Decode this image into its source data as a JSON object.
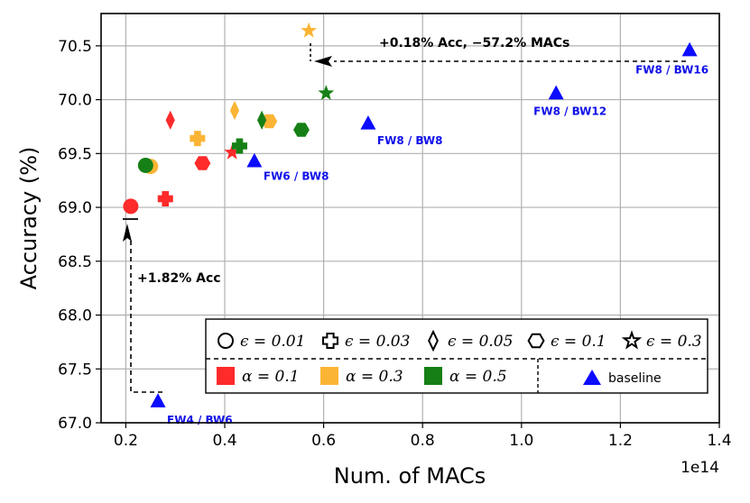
{
  "chart_data": {
    "type": "scatter",
    "xlabel": "Num. of MACs",
    "ylabel": "Accuracy (%)",
    "x_offset_label": "1e14",
    "xlim": [
      0.15,
      1.4
    ],
    "ylim": [
      67.0,
      70.8
    ],
    "grid": true,
    "x_ticks": [
      {
        "v": 0.2,
        "label": "0.2"
      },
      {
        "v": 0.4,
        "label": "0.4"
      },
      {
        "v": 0.6,
        "label": "0.6"
      },
      {
        "v": 0.8,
        "label": "0.8"
      },
      {
        "v": 1.0,
        "label": "1.0"
      },
      {
        "v": 1.2,
        "label": "1.2"
      },
      {
        "v": 1.4,
        "label": "1.4"
      }
    ],
    "y_ticks": [
      {
        "v": 67.0,
        "label": "67.0"
      },
      {
        "v": 67.5,
        "label": "67.5"
      },
      {
        "v": 68.0,
        "label": "68.0"
      },
      {
        "v": 68.5,
        "label": "68.5"
      },
      {
        "v": 69.0,
        "label": "69.0"
      },
      {
        "v": 69.5,
        "label": "69.5"
      },
      {
        "v": 70.0,
        "label": "70.0"
      },
      {
        "v": 70.5,
        "label": "70.5"
      }
    ],
    "colors": {
      "alpha_0.1": "#ff2a2a",
      "alpha_0.3": "#fbb434",
      "alpha_0.5": "#168016",
      "baseline": "#0c0cff"
    },
    "series": [
      {
        "name": "alpha=0.1",
        "color": "#ff2a2a",
        "points": [
          {
            "x": 0.21,
            "y": 69.01,
            "marker": "circle"
          },
          {
            "x": 0.28,
            "y": 69.08,
            "marker": "plus"
          },
          {
            "x": 0.29,
            "y": 69.81,
            "marker": "diamond"
          },
          {
            "x": 0.355,
            "y": 69.41,
            "marker": "hexagon"
          },
          {
            "x": 0.415,
            "y": 69.51,
            "marker": "star"
          }
        ]
      },
      {
        "name": "alpha=0.3",
        "color": "#fbb434",
        "points": [
          {
            "x": 0.25,
            "y": 69.38,
            "marker": "circle"
          },
          {
            "x": 0.345,
            "y": 69.64,
            "marker": "plus"
          },
          {
            "x": 0.42,
            "y": 69.9,
            "marker": "diamond"
          },
          {
            "x": 0.49,
            "y": 69.8,
            "marker": "hexagon"
          },
          {
            "x": 0.57,
            "y": 70.64,
            "marker": "star"
          }
        ]
      },
      {
        "name": "alpha=0.5",
        "color": "#168016",
        "points": [
          {
            "x": 0.24,
            "y": 69.39,
            "marker": "circle"
          },
          {
            "x": 0.43,
            "y": 69.57,
            "marker": "plus"
          },
          {
            "x": 0.475,
            "y": 69.81,
            "marker": "diamond"
          },
          {
            "x": 0.555,
            "y": 69.72,
            "marker": "hexagon"
          },
          {
            "x": 0.605,
            "y": 70.06,
            "marker": "star"
          }
        ]
      },
      {
        "name": "baseline",
        "color": "#0c0cff",
        "points": [
          {
            "x": 0.265,
            "y": 67.2,
            "marker": "triangle",
            "label": "FW4 / BW6"
          },
          {
            "x": 0.46,
            "y": 69.43,
            "marker": "triangle",
            "label": "FW6 / BW8"
          },
          {
            "x": 0.69,
            "y": 69.78,
            "marker": "triangle",
            "label": "FW8 / BW8"
          },
          {
            "x": 1.07,
            "y": 70.06,
            "marker": "triangle",
            "label": "FW8 / BW12"
          },
          {
            "x": 1.34,
            "y": 70.46,
            "marker": "triangle",
            "label": "FW8 / BW16"
          }
        ]
      }
    ],
    "annotations": [
      {
        "text": "+0.18% Acc, −57.2% MACs"
      },
      {
        "text": "+1.82% Acc"
      }
    ],
    "legend": {
      "placement": "bottom-right",
      "epsilon_entries": [
        {
          "marker": "circle",
          "label": "ϵ = 0.01"
        },
        {
          "marker": "plus",
          "label": "ϵ = 0.03"
        },
        {
          "marker": "diamond",
          "label": "ϵ = 0.05"
        },
        {
          "marker": "hexagon",
          "label": "ϵ = 0.1"
        },
        {
          "marker": "star",
          "label": "ϵ = 0.3"
        }
      ],
      "alpha_entries": [
        {
          "color": "#ff2a2a",
          "label": "α = 0.1"
        },
        {
          "color": "#fbb434",
          "label": "α = 0.3"
        },
        {
          "color": "#168016",
          "label": "α = 0.5"
        }
      ],
      "baseline_label": "baseline"
    }
  }
}
